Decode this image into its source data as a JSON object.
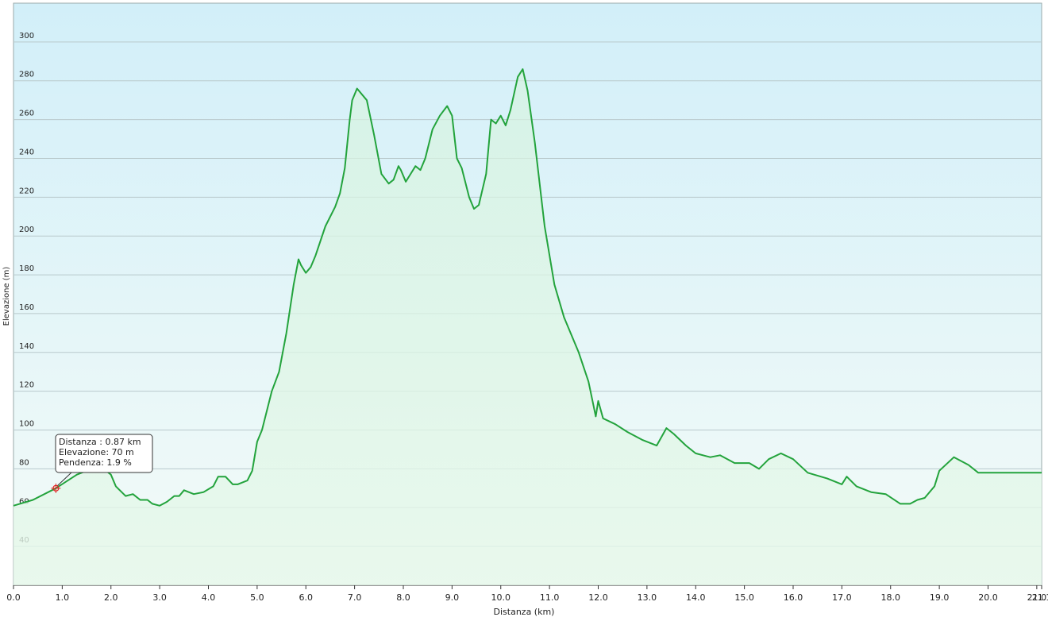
{
  "chart_data": {
    "type": "area-line",
    "x_label": "Distanza  (km)",
    "y_label": "Elevazione (m)",
    "x": [
      0,
      0.4,
      0.87,
      1.3,
      1.6,
      1.9,
      2.0,
      2.1,
      2.3,
      2.45,
      2.6,
      2.75,
      2.85,
      3.0,
      3.15,
      3.3,
      3.4,
      3.5,
      3.7,
      3.9,
      4.1,
      4.2,
      4.35,
      4.5,
      4.6,
      4.8,
      4.9,
      5.0,
      5.1,
      5.3,
      5.45,
      5.6,
      5.75,
      5.85,
      5.9,
      6.0,
      6.1,
      6.2,
      6.4,
      6.6,
      6.7,
      6.8,
      6.9,
      6.95,
      7.05,
      7.25,
      7.4,
      7.55,
      7.7,
      7.8,
      7.9,
      7.95,
      8.05,
      8.15,
      8.25,
      8.35,
      8.45,
      8.6,
      8.75,
      8.9,
      9.0,
      9.1,
      9.2,
      9.35,
      9.45,
      9.55,
      9.7,
      9.8,
      9.9,
      10.0,
      10.1,
      10.2,
      10.35,
      10.45,
      10.55,
      10.7,
      10.9,
      11.1,
      11.3,
      11.6,
      11.8,
      11.95,
      12.0,
      12.1,
      12.35,
      12.6,
      12.9,
      13.2,
      13.4,
      13.55,
      13.8,
      14.0,
      14.3,
      14.5,
      14.8,
      15.1,
      15.3,
      15.5,
      15.75,
      16.0,
      16.3,
      16.7,
      17.0,
      17.1,
      17.3,
      17.6,
      17.9,
      18.2,
      18.4,
      18.55,
      18.7,
      18.9,
      19.0,
      19.3,
      19.6,
      19.8,
      20.0,
      21.1
    ],
    "series": [
      {
        "name": "Elevazione",
        "color": "#23a33c",
        "values": [
          61,
          64,
          70,
          77,
          80,
          79,
          77,
          71,
          66,
          67,
          64,
          64,
          62,
          61,
          63,
          66,
          66,
          69,
          67,
          68,
          71,
          76,
          76,
          72,
          72,
          74,
          79,
          94,
          100,
          120,
          130,
          150,
          175,
          188,
          185,
          181,
          184,
          190,
          205,
          215,
          222,
          235,
          260,
          270,
          276,
          270,
          252,
          232,
          227,
          229,
          236,
          234,
          228,
          232,
          236,
          234,
          240,
          255,
          262,
          267,
          262,
          240,
          235,
          220,
          214,
          216,
          232,
          260,
          258,
          262,
          257,
          265,
          282,
          286,
          275,
          248,
          205,
          175,
          158,
          140,
          125,
          107,
          115,
          106,
          103,
          99,
          95,
          92,
          101,
          98,
          92,
          88,
          86,
          87,
          83,
          83,
          80,
          85,
          88,
          85,
          78,
          75,
          72,
          76,
          71,
          68,
          67,
          62,
          62,
          64,
          65,
          71,
          79,
          86,
          82,
          78,
          78,
          78
        ]
      }
    ],
    "xlim": [
      0,
      21.1
    ],
    "xticks": [
      {
        "value": 0,
        "label": "0.0"
      },
      {
        "value": 1,
        "label": "1.0"
      },
      {
        "value": 2,
        "label": "2.0"
      },
      {
        "value": 3,
        "label": "3.0"
      },
      {
        "value": 4,
        "label": "4.0"
      },
      {
        "value": 5,
        "label": "5.0"
      },
      {
        "value": 6,
        "label": "6.0"
      },
      {
        "value": 7,
        "label": "7.0"
      },
      {
        "value": 8,
        "label": "8.0"
      },
      {
        "value": 9,
        "label": "9.0"
      },
      {
        "value": 10,
        "label": "10.0"
      },
      {
        "value": 11,
        "label": "11.0"
      },
      {
        "value": 12,
        "label": "12.0"
      },
      {
        "value": 13,
        "label": "13.0"
      },
      {
        "value": 14,
        "label": "14.0"
      },
      {
        "value": 15,
        "label": "15.0"
      },
      {
        "value": 16,
        "label": "16.0"
      },
      {
        "value": 17,
        "label": "17.0"
      },
      {
        "value": 18,
        "label": "18.0"
      },
      {
        "value": 19,
        "label": "19.0"
      },
      {
        "value": 20,
        "label": "20.0"
      },
      {
        "value": 21,
        "label": "21.0"
      },
      {
        "value": 21.1,
        "label": "21.1"
      }
    ],
    "ylim": [
      20,
      320
    ],
    "yticks": [
      40,
      60,
      80,
      100,
      120,
      140,
      160,
      180,
      200,
      220,
      240,
      260,
      280,
      300
    ],
    "grid": true,
    "tooltip": [
      "Distanza : 0.87 km",
      "Elevazione: 70 m",
      "Pendenza: 1.9 %"
    ]
  }
}
